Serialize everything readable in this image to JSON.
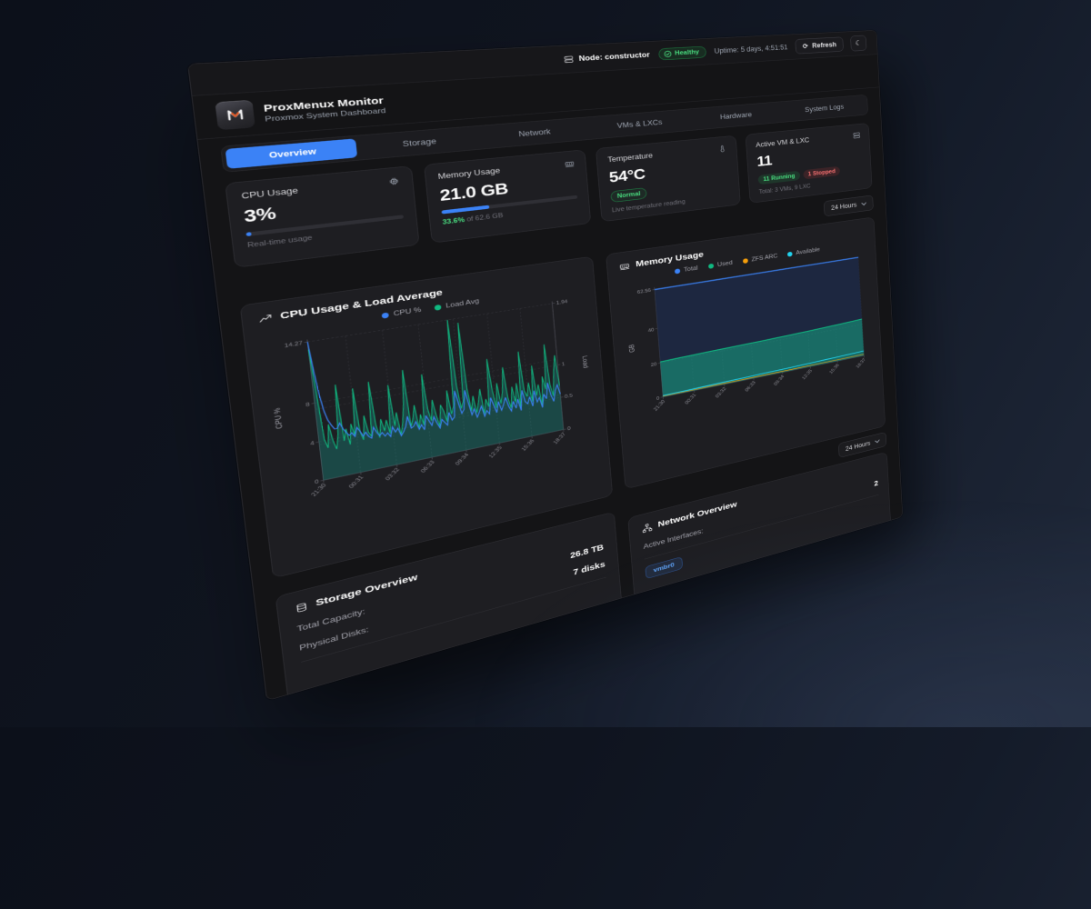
{
  "colors": {
    "accent": "#3b82f6",
    "green": "#22c55e",
    "green_text": "#4ade80",
    "red_text": "#f87171",
    "orange": "#f59e0b",
    "cyan": "#22d3ee",
    "teal_fill": "rgba(20,184,166,0.5)",
    "navy_fill": "#1d2740"
  },
  "topbar": {
    "node_label": "Node: constructor",
    "health_label": "Healthy",
    "uptime": "Uptime: 5 days, 4:51:51",
    "refresh_label": "Refresh"
  },
  "header": {
    "title": "ProxMenux Monitor",
    "subtitle": "Proxmox System Dashboard"
  },
  "tabs": [
    {
      "label": "Overview",
      "active": true
    },
    {
      "label": "Storage",
      "active": false
    },
    {
      "label": "Network",
      "active": false
    },
    {
      "label": "VMs & LXCs",
      "active": false
    },
    {
      "label": "Hardware",
      "active": false
    },
    {
      "label": "System Logs",
      "active": false
    }
  ],
  "stats": {
    "cpu": {
      "label": "CPU Usage",
      "value": "3%",
      "percent": 3,
      "caption": "Real-time usage"
    },
    "memory": {
      "label": "Memory Usage",
      "value": "21.0 GB",
      "percent": 33.6,
      "caption_highlight": "33.6%",
      "caption_rest": " of 62.6 GB"
    },
    "temperature": {
      "label": "Temperature",
      "value": "54°C",
      "badge": "Normal",
      "caption": "Live temperature reading"
    },
    "vms": {
      "label": "Active VM & LXC",
      "value": "11",
      "badge_running": "11 Running",
      "badge_stopped": "1 Stopped",
      "caption": "Total: 3 VMs, 9 LXC"
    }
  },
  "time_range": {
    "value": "24 Hours"
  },
  "chart_data": [
    {
      "type": "line",
      "title": "CPU Usage & Load Average",
      "legend": [
        "CPU %",
        "Load Avg"
      ],
      "ylabel": "CPU %",
      "y2label": "Load",
      "ylim": [
        0,
        14.27
      ],
      "y2lim": [
        0,
        1.94
      ],
      "y_ticks": [
        0,
        4,
        8,
        14.27
      ],
      "y2_ticks": [
        0,
        0.5,
        1,
        1.94
      ],
      "x_ticks": [
        "21:30",
        "00:31",
        "03:32",
        "06:33",
        "09:34",
        "12:35",
        "15:36",
        "18:37"
      ],
      "grid": true,
      "legend_position": "top",
      "series": [
        {
          "name": "CPU %",
          "color": "#10b981",
          "fill": "rgba(20,184,166,0.28)",
          "axis": "left",
          "values": [
            13.5,
            9.2,
            4.1,
            3.2,
            5.6,
            3.8,
            2.9,
            4.4,
            9.5,
            3.6,
            4.8,
            3.1,
            5.2,
            3.9,
            8.8,
            4.2,
            3.3,
            5.8,
            4.0,
            3.5,
            9.2,
            4.6,
            3.2,
            5.1,
            3.8,
            4.9,
            3.4,
            8.5,
            4.1,
            5.5,
            3.0,
            4.3,
            6.2,
            9.8,
            3.7,
            4.5,
            5.9,
            3.3,
            4.8,
            3.6,
            9.0,
            5.2,
            3.9,
            6.1,
            4.4,
            3.1,
            5.4,
            4.7,
            3.5,
            6.8,
            4.2,
            5.0,
            14.27,
            7.1,
            4.6,
            5.3,
            13.8,
            6.5,
            4.1,
            5.7,
            3.8,
            4.9,
            6.3,
            3.5,
            5.1,
            4.2,
            9.4,
            5.8,
            3.9,
            6.6,
            4.3,
            5.5,
            8.2,
            4.8,
            3.6,
            5.9,
            4.1,
            6.2,
            3.4,
            9.6,
            5.2,
            4.5,
            6.0,
            3.8,
            7.8,
            4.4,
            5.6,
            3.2,
            6.4,
            4.9,
            9.9,
            5.3,
            4.0,
            6.7,
            8.5,
            5.0
          ]
        },
        {
          "name": "Load Avg",
          "color": "#3b82f6",
          "axis": "right",
          "values": [
            1.94,
            1.52,
            1.18,
            0.95,
            0.82,
            0.74,
            0.68,
            0.68,
            0.75,
            0.66,
            0.6,
            0.55,
            0.58,
            0.52,
            0.64,
            0.58,
            0.5,
            0.55,
            0.48,
            0.45,
            0.6,
            0.52,
            0.46,
            0.5,
            0.44,
            0.48,
            0.42,
            0.55,
            0.47,
            0.52,
            0.4,
            0.45,
            0.52,
            0.66,
            0.48,
            0.5,
            0.56,
            0.44,
            0.5,
            0.42,
            0.62,
            0.54,
            0.46,
            0.58,
            0.48,
            0.4,
            0.52,
            0.47,
            0.42,
            0.6,
            0.48,
            0.52,
            0.9,
            0.72,
            0.55,
            0.6,
            0.88,
            0.68,
            0.5,
            0.58,
            0.45,
            0.52,
            0.6,
            0.44,
            0.52,
            0.46,
            0.7,
            0.58,
            0.46,
            0.62,
            0.48,
            0.56,
            0.66,
            0.52,
            0.44,
            0.58,
            0.47,
            0.6,
            0.42,
            0.72,
            0.54,
            0.5,
            0.6,
            0.45,
            0.68,
            0.5,
            0.56,
            0.4,
            0.6,
            0.52,
            0.76,
            0.56,
            0.46,
            0.62,
            0.7,
            0.55
          ]
        }
      ]
    },
    {
      "type": "area",
      "title": "Memory Usage",
      "legend": [
        "Total",
        "Used",
        "ZFS ARC",
        "Available"
      ],
      "legend_colors": [
        "#3b82f6",
        "#10b981",
        "#f59e0b",
        "#22d3ee"
      ],
      "ylabel": "GB",
      "ylim": [
        0,
        62.56
      ],
      "y_ticks": [
        0,
        20,
        40,
        62.56
      ],
      "x_ticks": [
        "21:30",
        "00:31",
        "03:32",
        "06:33",
        "09:34",
        "12:35",
        "15:36",
        "18:37"
      ],
      "grid": true,
      "legend_position": "top",
      "series": [
        {
          "name": "Total",
          "color": "#3b82f6",
          "values": [
            62.56,
            62.56,
            62.56,
            62.56,
            62.56,
            62.56,
            62.56,
            62.56,
            62.56
          ]
        },
        {
          "name": "Used",
          "color": "#10b981",
          "values": [
            20.6,
            20.9,
            21.2,
            21.4,
            21.6,
            21.9,
            22.3,
            22.8,
            23.4
          ]
        },
        {
          "name": "ZFS ARC",
          "color": "#f59e0b",
          "values": [
            0.5,
            0.5,
            0.6,
            0.6,
            0.7,
            0.7,
            0.8,
            0.8,
            0.9
          ]
        },
        {
          "name": "Available",
          "color": "#22d3ee",
          "values": [
            0.8,
            1.0,
            1.3,
            1.5,
            1.8,
            2.0,
            2.3,
            2.6,
            3.0
          ]
        }
      ]
    }
  ],
  "storage": {
    "title": "Storage Overview",
    "rows": [
      {
        "label": "Total Capacity:",
        "value": "26.8 TB"
      },
      {
        "label": "Physical Disks:",
        "value": "7 disks"
      }
    ]
  },
  "network": {
    "title": "Network Overview",
    "rows": [
      {
        "label": "Active Interfaces:",
        "value": "2"
      }
    ],
    "interfaces": [
      "vmbr0"
    ]
  }
}
